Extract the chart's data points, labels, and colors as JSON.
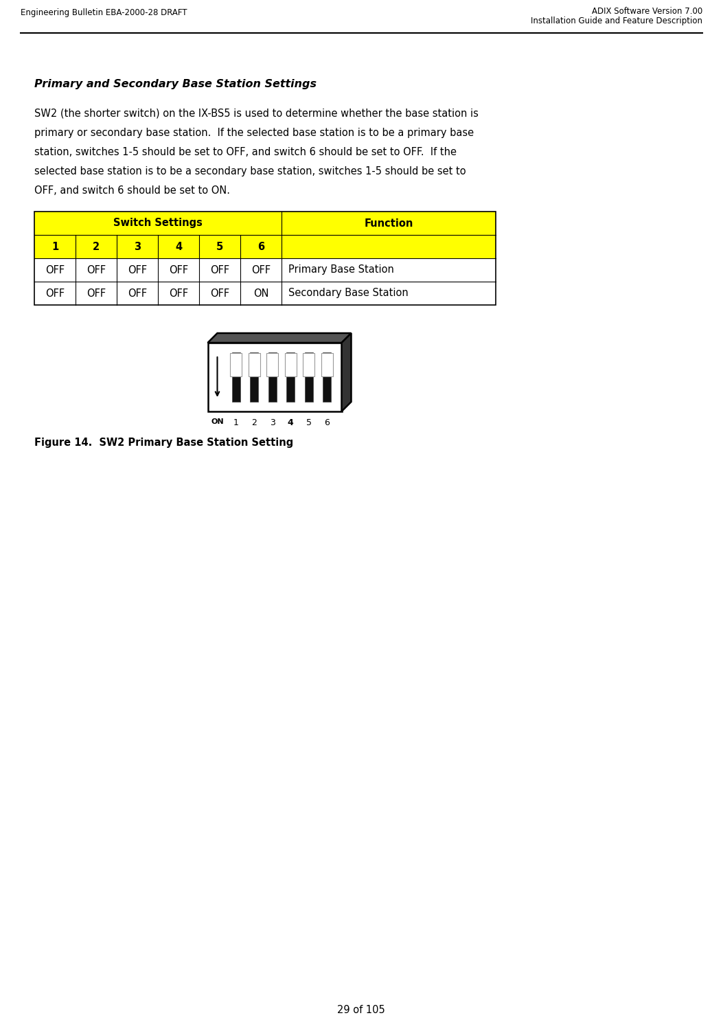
{
  "header_left": "Engineering Bulletin EBA-2000-28 DRAFT",
  "header_right_line1": "ADIX Software Version 7.00",
  "header_right_line2": "Installation Guide and Feature Description",
  "section_title": "Primary and Secondary Base Station Settings",
  "body_lines": [
    "SW2 (the shorter switch) on the IX-BS5 is used to determine whether the base station is",
    "primary or secondary base station.  If the selected base station is to be a primary base",
    "station, switches 1-5 should be set to OFF, and switch 6 should be set to OFF.  If the",
    "selected base station is to be a secondary base station, switches 1-5 should be set to",
    "OFF, and switch 6 should be set to ON."
  ],
  "table_row0_sw": "Switch Settings",
  "table_row0_fn": "Function",
  "table_row1": [
    "1",
    "2",
    "3",
    "4",
    "5",
    "6"
  ],
  "table_row2": [
    "OFF",
    "OFF",
    "OFF",
    "OFF",
    "OFF",
    "OFF",
    "Primary Base Station"
  ],
  "table_row3": [
    "OFF",
    "OFF",
    "OFF",
    "OFF",
    "OFF",
    "ON",
    "Secondary Base Station"
  ],
  "figure_caption": "Figure 14.  SW2 Primary Base Station Setting",
  "footer_text": "29 of 105",
  "yellow_color": "#FFFF00",
  "header_font_size": 8.5,
  "body_font_size": 10.5,
  "table_font_size": 10.5,
  "title_font_size": 11.5
}
